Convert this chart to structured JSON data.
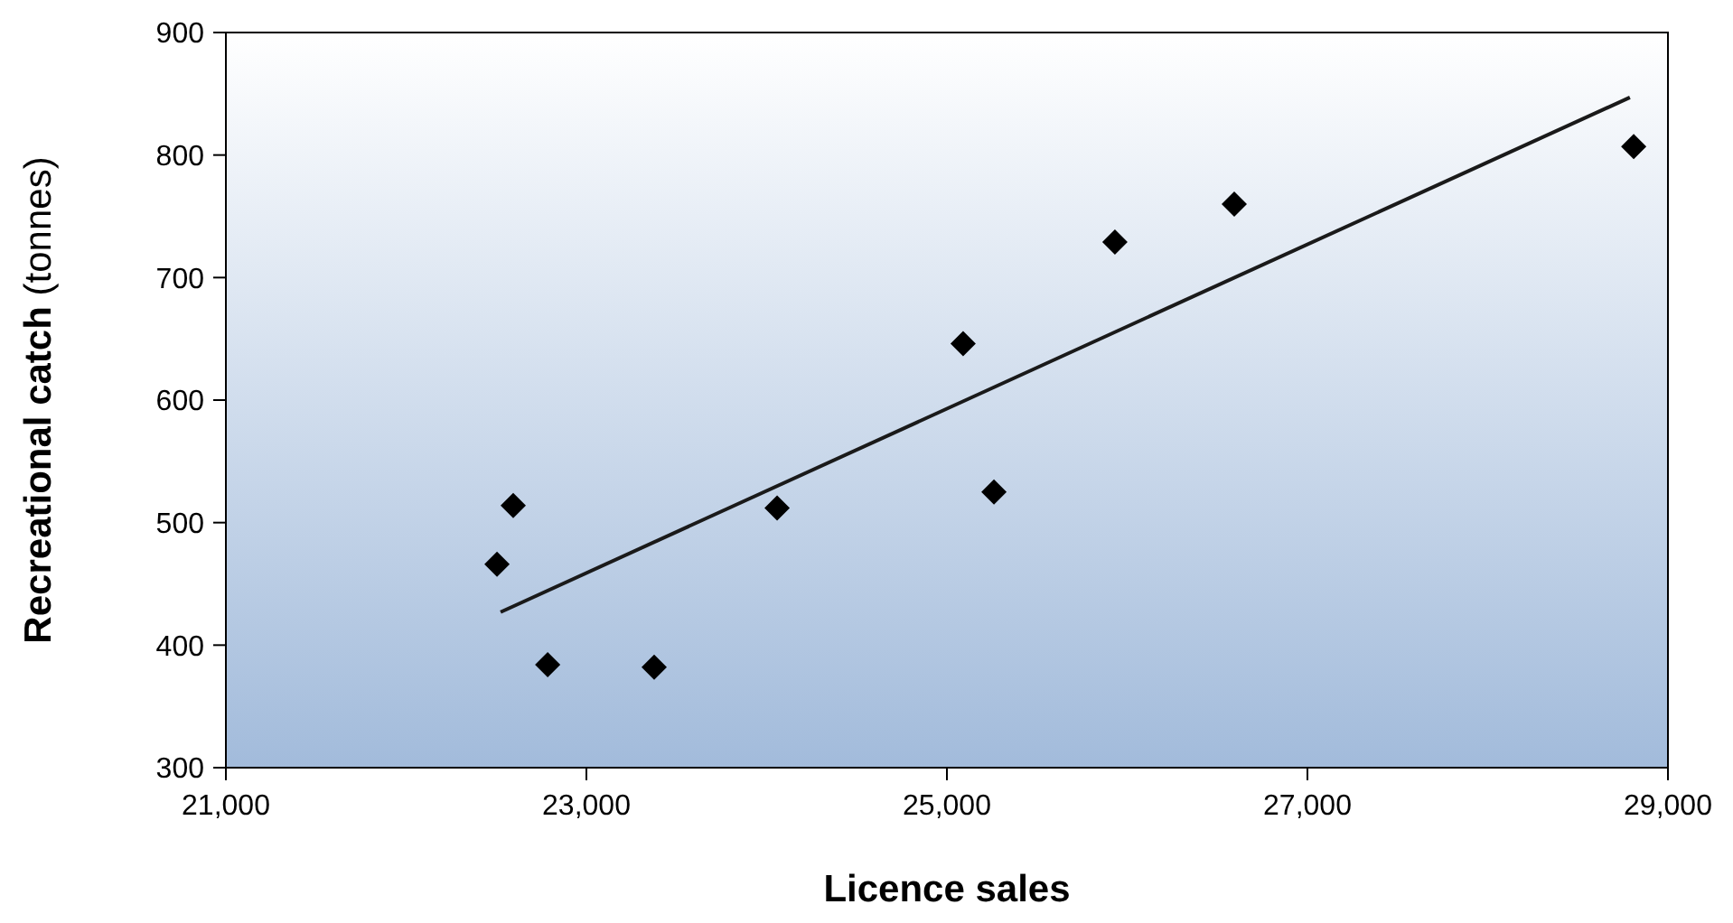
{
  "chart_data": {
    "type": "scatter",
    "xlabel": "Licence sales",
    "ylabel": "Recreational catch (tonnes)",
    "xlim": [
      21000,
      29000
    ],
    "xticks": [
      {
        "value": 21000,
        "label": "21,000"
      },
      {
        "value": 23000,
        "label": "23,000"
      },
      {
        "value": 25000,
        "label": "25,000"
      },
      {
        "value": 27000,
        "label": "27,000"
      },
      {
        "value": 29000,
        "label": "29,000"
      }
    ],
    "ylim": [
      300,
      900
    ],
    "yticks": [
      300,
      400,
      500,
      600,
      700,
      800,
      900
    ],
    "series": [
      {
        "color": "#000000",
        "marker": "diamond",
        "x": [
          22504,
          22594,
          22785,
          23376,
          24058,
          25090,
          25261,
          25932,
          26594,
          28810
        ],
        "values": [
          466,
          514,
          384,
          382,
          512,
          646,
          525,
          729,
          760,
          807
        ]
      },
      {
        "type": "line",
        "color": "#1a1a1a",
        "marker": "none",
        "x": [
          22524,
          28789
        ],
        "values": [
          427,
          847
        ]
      }
    ]
  }
}
